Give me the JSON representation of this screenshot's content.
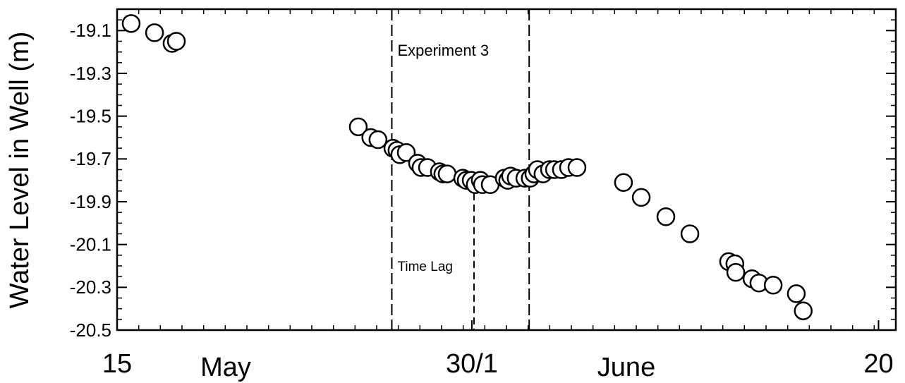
{
  "chart_data": {
    "type": "scatter",
    "ylabel": "Water Level in Well (m)",
    "xlim": [
      0,
      36
    ],
    "ylim": [
      -20.5,
      -19.0
    ],
    "xticks": [
      {
        "value": 0,
        "label": "15"
      },
      {
        "value": 16.4,
        "label": "30/1"
      },
      {
        "value": 35.2,
        "label": "20"
      }
    ],
    "yticks": [
      -19.1,
      -19.3,
      -19.5,
      -19.7,
      -19.9,
      -20.1,
      -20.3,
      -20.5
    ],
    "month_labels": [
      "May",
      "June"
    ],
    "experiment": {
      "label": "Experiment 3",
      "start": 12.7,
      "end": 19.05
    },
    "time_lag": {
      "label": "Time Lag",
      "x": 16.5,
      "top": -19.86
    },
    "series": [
      {
        "color": "#000000",
        "x": [
          0.65,
          1.73,
          2.54,
          2.74,
          11.15,
          11.73,
          12.06,
          12.75,
          12.94,
          13.07,
          13.37,
          13.89,
          14.05,
          14.35,
          14.9,
          15.06,
          15.26,
          15.98,
          16.14,
          16.37,
          16.56,
          16.79,
          16.89,
          17.25,
          17.9,
          18.06,
          18.19,
          18.45,
          18.85,
          19.1,
          19.27,
          19.43,
          19.69,
          19.99,
          20.22,
          20.54,
          20.87,
          21.26,
          23.41,
          24.23,
          25.37,
          26.48,
          28.27,
          28.56,
          28.6,
          29.35,
          29.67,
          30.33,
          31.4,
          31.72
        ],
        "values": [
          -19.067,
          -19.11,
          -19.16,
          -19.15,
          -19.55,
          -19.6,
          -19.61,
          -19.65,
          -19.66,
          -19.68,
          -19.67,
          -19.72,
          -19.74,
          -19.74,
          -19.76,
          -19.77,
          -19.77,
          -19.79,
          -19.8,
          -19.8,
          -19.82,
          -19.8,
          -19.82,
          -19.82,
          -19.79,
          -19.8,
          -19.78,
          -19.79,
          -19.79,
          -19.79,
          -19.77,
          -19.75,
          -19.77,
          -19.75,
          -19.75,
          -19.75,
          -19.74,
          -19.74,
          -19.81,
          -19.88,
          -19.97,
          -20.05,
          -20.18,
          -20.19,
          -20.23,
          -20.26,
          -20.28,
          -20.29,
          -20.33,
          -20.41
        ]
      }
    ]
  }
}
